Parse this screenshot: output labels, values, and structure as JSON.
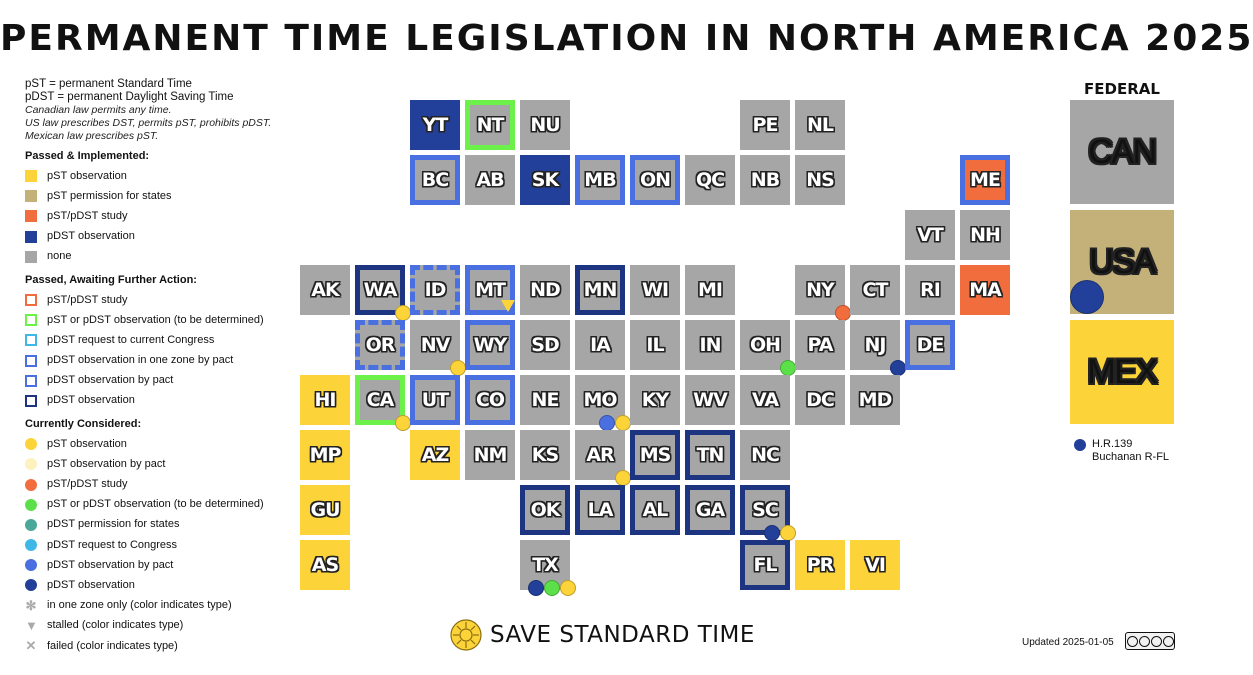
{
  "title": "PERMANENT TIME LEGISLATION IN NORTH AMERICA 2025",
  "legend": {
    "abbr1": "pST = permanent Standard Time",
    "abbr2": "pDST = permanent Daylight Saving Time",
    "note1": "Canadian law permits any time.",
    "note2": "US law prescribes DST, permits pST, prohibits pDST.",
    "note3": "Mexican law prescribes pST.",
    "implemented_title": "Passed & Implemented:",
    "implemented": [
      {
        "label": "pST observation",
        "color": "#fcd338"
      },
      {
        "label": "pST permission for states",
        "color": "#c4b079"
      },
      {
        "label": "pST/pDST study",
        "color": "#f26d3d"
      },
      {
        "label": "pDST observation",
        "color": "#22409a"
      },
      {
        "label": "none",
        "color": "#a6a6a6"
      }
    ],
    "awaiting_title": "Passed, Awaiting Further Action:",
    "awaiting": [
      {
        "label": "pST/pDST study",
        "color": "#f26d3d"
      },
      {
        "label": "pST or pDST observation (to be determined)",
        "color": "#6cf04a"
      },
      {
        "label": "pDST request to current Congress",
        "color": "#3fb8e8"
      },
      {
        "label": "pDST observation in one zone by pact",
        "color": "#4a6fe0"
      },
      {
        "label": "pDST observation by pact",
        "color": "#4a6fe0"
      },
      {
        "label": "pDST observation",
        "color": "#1d3480"
      }
    ],
    "considered_title": "Currently Considered:",
    "considered": [
      {
        "label": "pST observation",
        "color": "#fcd338"
      },
      {
        "label": "pST observation by pact",
        "color": "#fdf1c0"
      },
      {
        "label": "pST/pDST study",
        "color": "#f26d3d"
      },
      {
        "label": "pST or pDST observation (to be determined)",
        "color": "#5ce04a"
      },
      {
        "label": "pDST permission for states",
        "color": "#4aa89a"
      },
      {
        "label": "pDST request to Congress",
        "color": "#3fb8e8"
      },
      {
        "label": "pDST observation by pact",
        "color": "#4a6fe0"
      },
      {
        "label": "pDST observation",
        "color": "#22409a"
      }
    ],
    "markers": [
      {
        "label": "in one zone only (color indicates type)",
        "icon": "asterisk-icon"
      },
      {
        "label": "stalled (color indicates type)",
        "icon": "triangle-down-icon"
      },
      {
        "label": "failed (color indicates type)",
        "icon": "cross-icon"
      }
    ]
  },
  "tiles": [
    {
      "abbr": "YT",
      "fill": "pdst"
    },
    {
      "abbr": "NT",
      "fill": "none",
      "border": "tbd"
    },
    {
      "abbr": "NU",
      "fill": "none"
    },
    {
      "abbr": "PE",
      "fill": "none"
    },
    {
      "abbr": "NL",
      "fill": "none"
    },
    {
      "abbr": "BC",
      "fill": "none",
      "border": "pact"
    },
    {
      "abbr": "AB",
      "fill": "none"
    },
    {
      "abbr": "SK",
      "fill": "pdst"
    },
    {
      "abbr": "MB",
      "fill": "none",
      "border": "pact"
    },
    {
      "abbr": "ON",
      "fill": "none",
      "border": "pact"
    },
    {
      "abbr": "QC",
      "fill": "none"
    },
    {
      "abbr": "NB",
      "fill": "none"
    },
    {
      "abbr": "NS",
      "fill": "none"
    },
    {
      "abbr": "ME",
      "fill": "study",
      "border": "pact"
    },
    {
      "abbr": "VT",
      "fill": "none"
    },
    {
      "abbr": "NH",
      "fill": "none"
    },
    {
      "abbr": "AK",
      "fill": "none"
    },
    {
      "abbr": "WA",
      "fill": "none",
      "border": "pdst",
      "dots": [
        "pst"
      ]
    },
    {
      "abbr": "ID",
      "fill": "none",
      "border": "zone"
    },
    {
      "abbr": "MT",
      "fill": "none",
      "border": "pact",
      "tri": "pst"
    },
    {
      "abbr": "ND",
      "fill": "none"
    },
    {
      "abbr": "MN",
      "fill": "none",
      "border": "pdst"
    },
    {
      "abbr": "WI",
      "fill": "none"
    },
    {
      "abbr": "MI",
      "fill": "none"
    },
    {
      "abbr": "NY",
      "fill": "none",
      "dots": [
        "study"
      ]
    },
    {
      "abbr": "CT",
      "fill": "none"
    },
    {
      "abbr": "RI",
      "fill": "none"
    },
    {
      "abbr": "MA",
      "fill": "study"
    },
    {
      "abbr": "OR",
      "fill": "none",
      "border": "zone"
    },
    {
      "abbr": "NV",
      "fill": "none",
      "dots": [
        "pst"
      ]
    },
    {
      "abbr": "WY",
      "fill": "none",
      "border": "pact"
    },
    {
      "abbr": "SD",
      "fill": "none"
    },
    {
      "abbr": "IA",
      "fill": "none"
    },
    {
      "abbr": "IL",
      "fill": "none"
    },
    {
      "abbr": "IN",
      "fill": "none"
    },
    {
      "abbr": "OH",
      "fill": "none",
      "dots": [
        "tbd"
      ]
    },
    {
      "abbr": "PA",
      "fill": "none"
    },
    {
      "abbr": "NJ",
      "fill": "none",
      "dots": [
        "pdst"
      ]
    },
    {
      "abbr": "DE",
      "fill": "none",
      "border": "pact"
    },
    {
      "abbr": "HI",
      "fill": "pst"
    },
    {
      "abbr": "CA",
      "fill": "none",
      "border": "tbd",
      "dots": [
        "pst"
      ]
    },
    {
      "abbr": "UT",
      "fill": "none",
      "border": "pact"
    },
    {
      "abbr": "CO",
      "fill": "none",
      "border": "pact"
    },
    {
      "abbr": "NE",
      "fill": "none"
    },
    {
      "abbr": "MO",
      "fill": "none",
      "dots": [
        "pact",
        "pst"
      ]
    },
    {
      "abbr": "KY",
      "fill": "none"
    },
    {
      "abbr": "WV",
      "fill": "none"
    },
    {
      "abbr": "VA",
      "fill": "none"
    },
    {
      "abbr": "DC",
      "fill": "none"
    },
    {
      "abbr": "MD",
      "fill": "none"
    },
    {
      "abbr": "MP",
      "fill": "pst"
    },
    {
      "abbr": "AZ",
      "fill": "pst"
    },
    {
      "abbr": "NM",
      "fill": "none"
    },
    {
      "abbr": "KS",
      "fill": "none"
    },
    {
      "abbr": "AR",
      "fill": "none",
      "dots": [
        "pst"
      ]
    },
    {
      "abbr": "MS",
      "fill": "none",
      "border": "pdst"
    },
    {
      "abbr": "TN",
      "fill": "none",
      "border": "pdst"
    },
    {
      "abbr": "NC",
      "fill": "none"
    },
    {
      "abbr": "GU",
      "fill": "pst"
    },
    {
      "abbr": "OK",
      "fill": "none",
      "border": "pdst"
    },
    {
      "abbr": "LA",
      "fill": "none",
      "border": "pdst"
    },
    {
      "abbr": "AL",
      "fill": "none",
      "border": "pdst"
    },
    {
      "abbr": "GA",
      "fill": "none",
      "border": "pdst"
    },
    {
      "abbr": "SC",
      "fill": "none",
      "border": "pdst",
      "dots": [
        "pdst",
        "pst"
      ]
    },
    {
      "abbr": "AS",
      "fill": "pst"
    },
    {
      "abbr": "TX",
      "fill": "none",
      "dots": [
        "pdst",
        "tbd",
        "pst"
      ]
    },
    {
      "abbr": "FL",
      "fill": "none",
      "border": "pdst"
    },
    {
      "abbr": "PR",
      "fill": "pst"
    },
    {
      "abbr": "VI",
      "fill": "pst"
    }
  ],
  "federal": {
    "heading": "FEDERAL",
    "can": "CAN",
    "usa": "USA",
    "mex": "MEX",
    "bill_line1": "H.R.139",
    "bill_line2": "Buchanan R-FL"
  },
  "footer": {
    "brand": "SAVE STANDARD TIME",
    "updated": "Updated 2025-01-05",
    "license": "CC BY NC ND"
  }
}
